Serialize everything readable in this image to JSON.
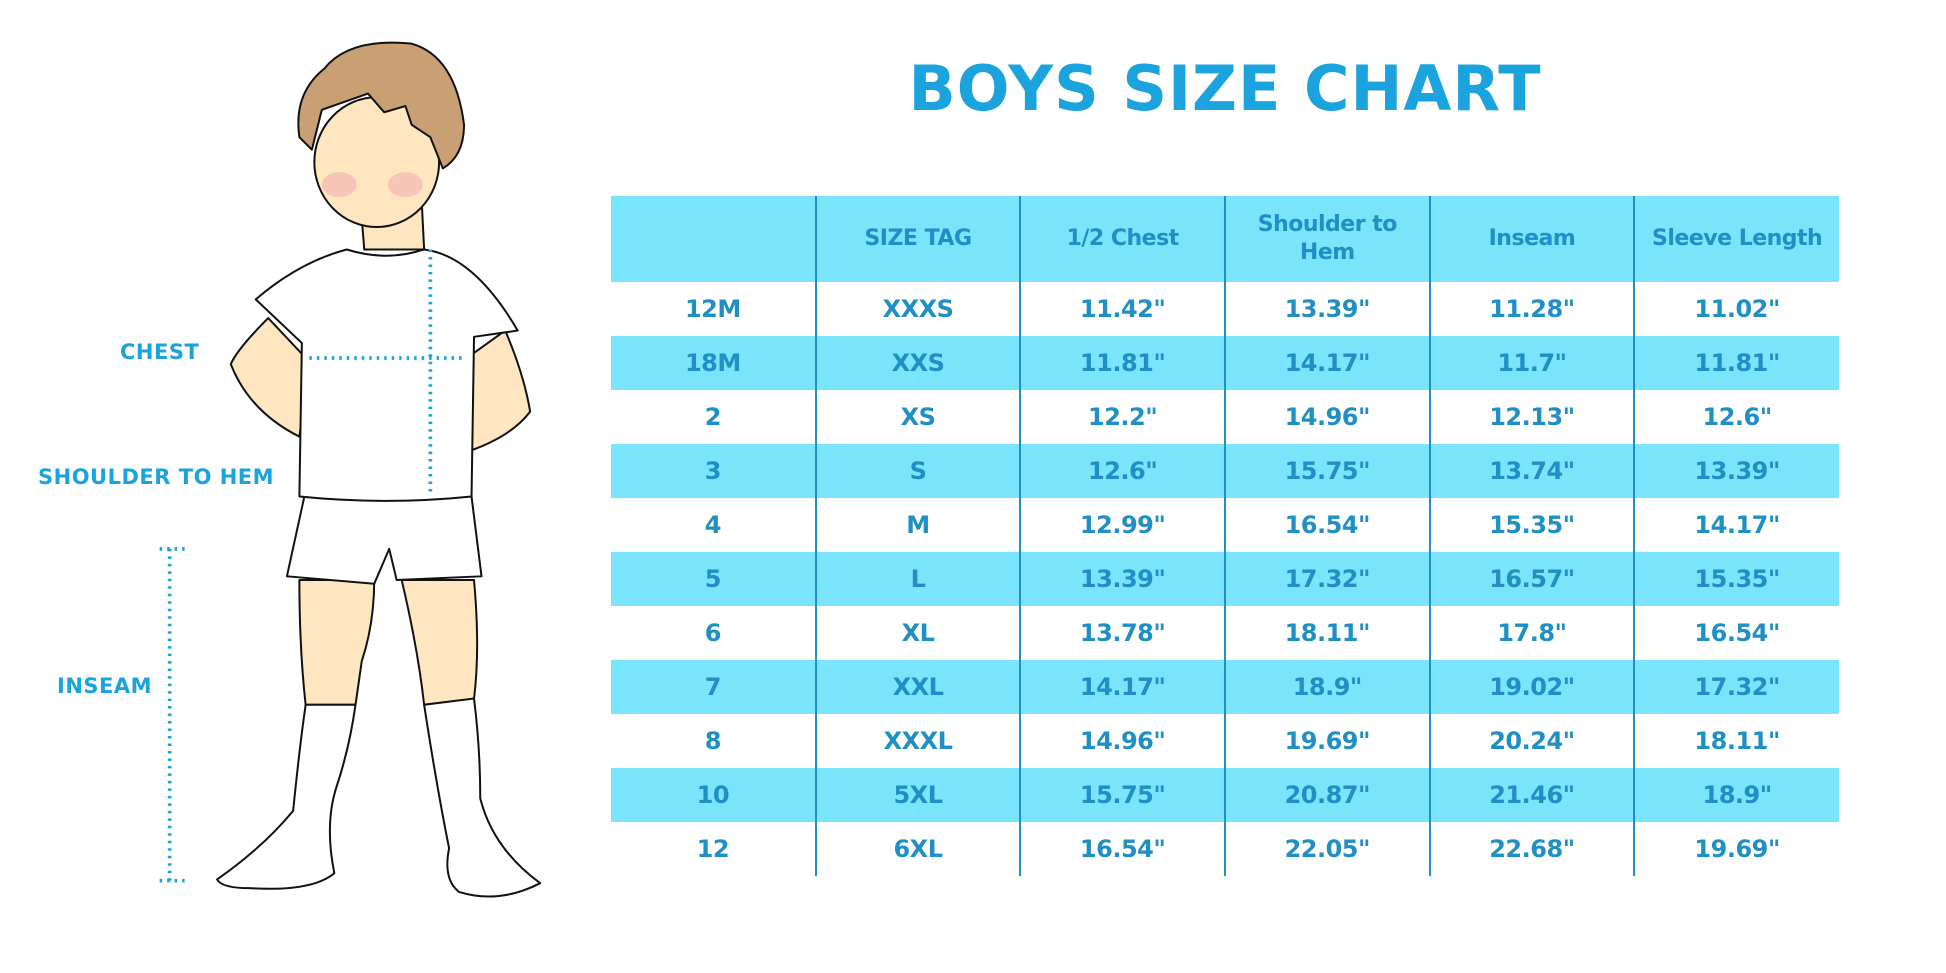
{
  "title": "BOYS SIZE CHART",
  "figure_labels": {
    "chest": "CHEST",
    "shoulder_to_hem": "SHOULDER TO HEM",
    "inseam": "INSEAM"
  },
  "colors": {
    "accent": "#1aa3dc",
    "row_highlight": "#7ae4fb",
    "text": "#1f8fc4"
  },
  "table": {
    "headers": [
      "",
      "SIZE TAG",
      "1/2 Chest",
      "Shoulder to Hem",
      "Inseam",
      "Sleeve Length"
    ],
    "rows": [
      [
        "12M",
        "XXXS",
        "11.42\"",
        "13.39\"",
        "11.28\"",
        "11.02\""
      ],
      [
        "18M",
        "XXS",
        "11.81\"",
        "14.17\"",
        "11.7\"",
        "11.81\""
      ],
      [
        "2",
        "XS",
        "12.2\"",
        "14.96\"",
        "12.13\"",
        "12.6\""
      ],
      [
        "3",
        "S",
        "12.6\"",
        "15.75\"",
        "13.74\"",
        "13.39\""
      ],
      [
        "4",
        "M",
        "12.99\"",
        "16.54\"",
        "15.35\"",
        "14.17\""
      ],
      [
        "5",
        "L",
        "13.39\"",
        "17.32\"",
        "16.57\"",
        "15.35\""
      ],
      [
        "6",
        "XL",
        "13.78\"",
        "18.11\"",
        "17.8\"",
        "16.54\""
      ],
      [
        "7",
        "XXL",
        "14.17\"",
        "18.9\"",
        "19.02\"",
        "17.32\""
      ],
      [
        "8",
        "XXXL",
        "14.96\"",
        "19.69\"",
        "20.24\"",
        "18.11\""
      ],
      [
        "10",
        "5XL",
        "15.75\"",
        "20.87\"",
        "21.46\"",
        "18.9\""
      ],
      [
        "12",
        "6XL",
        "16.54\"",
        "22.05\"",
        "22.68\"",
        "19.69\""
      ]
    ]
  }
}
